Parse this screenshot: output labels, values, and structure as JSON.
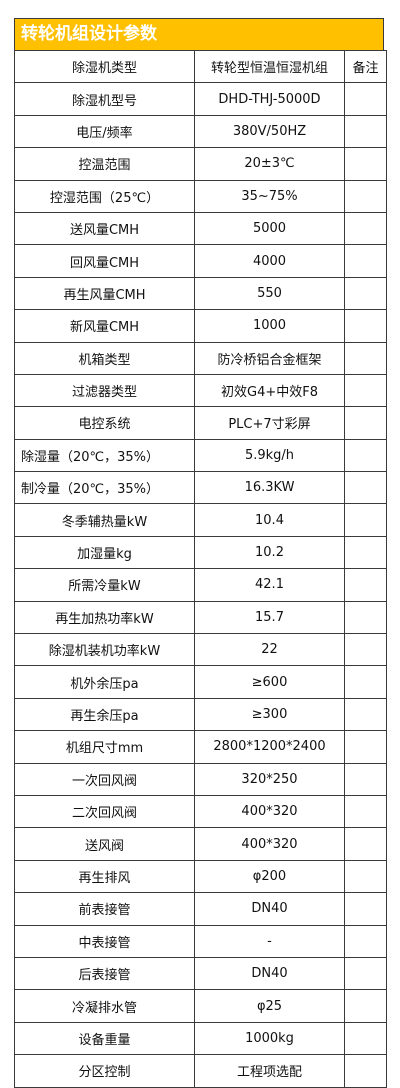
{
  "title": "转轮机组设计参数",
  "header": {
    "param": "除湿机类型",
    "value": "转轮型恒温恒湿机组",
    "remark": "备注"
  },
  "rows": [
    {
      "param": "除湿机型号",
      "value": "DHD-THJ-5000D",
      "align": "center"
    },
    {
      "param": "电压/频率",
      "value": "380V/50HZ",
      "align": "center"
    },
    {
      "param": "控温范围",
      "value": "20±3℃",
      "align": "center"
    },
    {
      "param": "控湿范围（25℃）",
      "value": "35~75%",
      "align": "center"
    },
    {
      "param": "送风量CMH",
      "value": "5000",
      "align": "center"
    },
    {
      "param": "回风量CMH",
      "value": "4000",
      "align": "center"
    },
    {
      "param": "再生风量CMH",
      "value": "550",
      "align": "center"
    },
    {
      "param": "新风量CMH",
      "value": "1000",
      "align": "center"
    },
    {
      "param": "机箱类型",
      "value": "防冷桥铝合金框架",
      "align": "center"
    },
    {
      "param": "过滤器类型",
      "value": "初效G4+中效F8",
      "align": "center"
    },
    {
      "param": "电控系统",
      "value": "PLC+7寸彩屏",
      "align": "center"
    },
    {
      "param": "除湿量（20℃，35%）",
      "value": "5.9kg/h",
      "align": "left"
    },
    {
      "param": "制冷量（20℃，35%）",
      "value": "16.3KW",
      "align": "left"
    },
    {
      "param": "冬季辅热量kW",
      "value": "10.4",
      "align": "center"
    },
    {
      "param": "加湿量kg",
      "value": "10.2",
      "align": "center"
    },
    {
      "param": "所需冷量kW",
      "value": "42.1",
      "align": "center"
    },
    {
      "param": "再生加热功率kW",
      "value": "15.7",
      "align": "center"
    },
    {
      "param": "除湿机装机功率kW",
      "value": "22",
      "align": "center"
    },
    {
      "param": "机外余压pa",
      "value": "≥600",
      "align": "center"
    },
    {
      "param": "再生余压pa",
      "value": "≥300",
      "align": "center"
    },
    {
      "param": "机组尺寸mm",
      "value": "2800*1200*2400",
      "align": "center"
    },
    {
      "param": "一次回风阀",
      "value": "320*250",
      "align": "center"
    },
    {
      "param": "二次回风阀",
      "value": "400*320",
      "align": "center"
    },
    {
      "param": "送风阀",
      "value": "400*320",
      "align": "center"
    },
    {
      "param": "再生排风",
      "value": "φ200",
      "align": "center"
    },
    {
      "param": "前表接管",
      "value": "DN40",
      "align": "center"
    },
    {
      "param": "中表接管",
      "value": "-",
      "align": "center"
    },
    {
      "param": "后表接管",
      "value": "DN40",
      "align": "center"
    },
    {
      "param": "冷凝排水管",
      "value": "φ25",
      "align": "center"
    },
    {
      "param": "设备重量",
      "value": "1000kg",
      "align": "center"
    },
    {
      "param": "分区控制",
      "value": "工程项选配",
      "align": "center"
    }
  ],
  "colors": {
    "title_bg": "#ffc000",
    "title_text": "#ffffff",
    "border": "#3a3a3a"
  }
}
